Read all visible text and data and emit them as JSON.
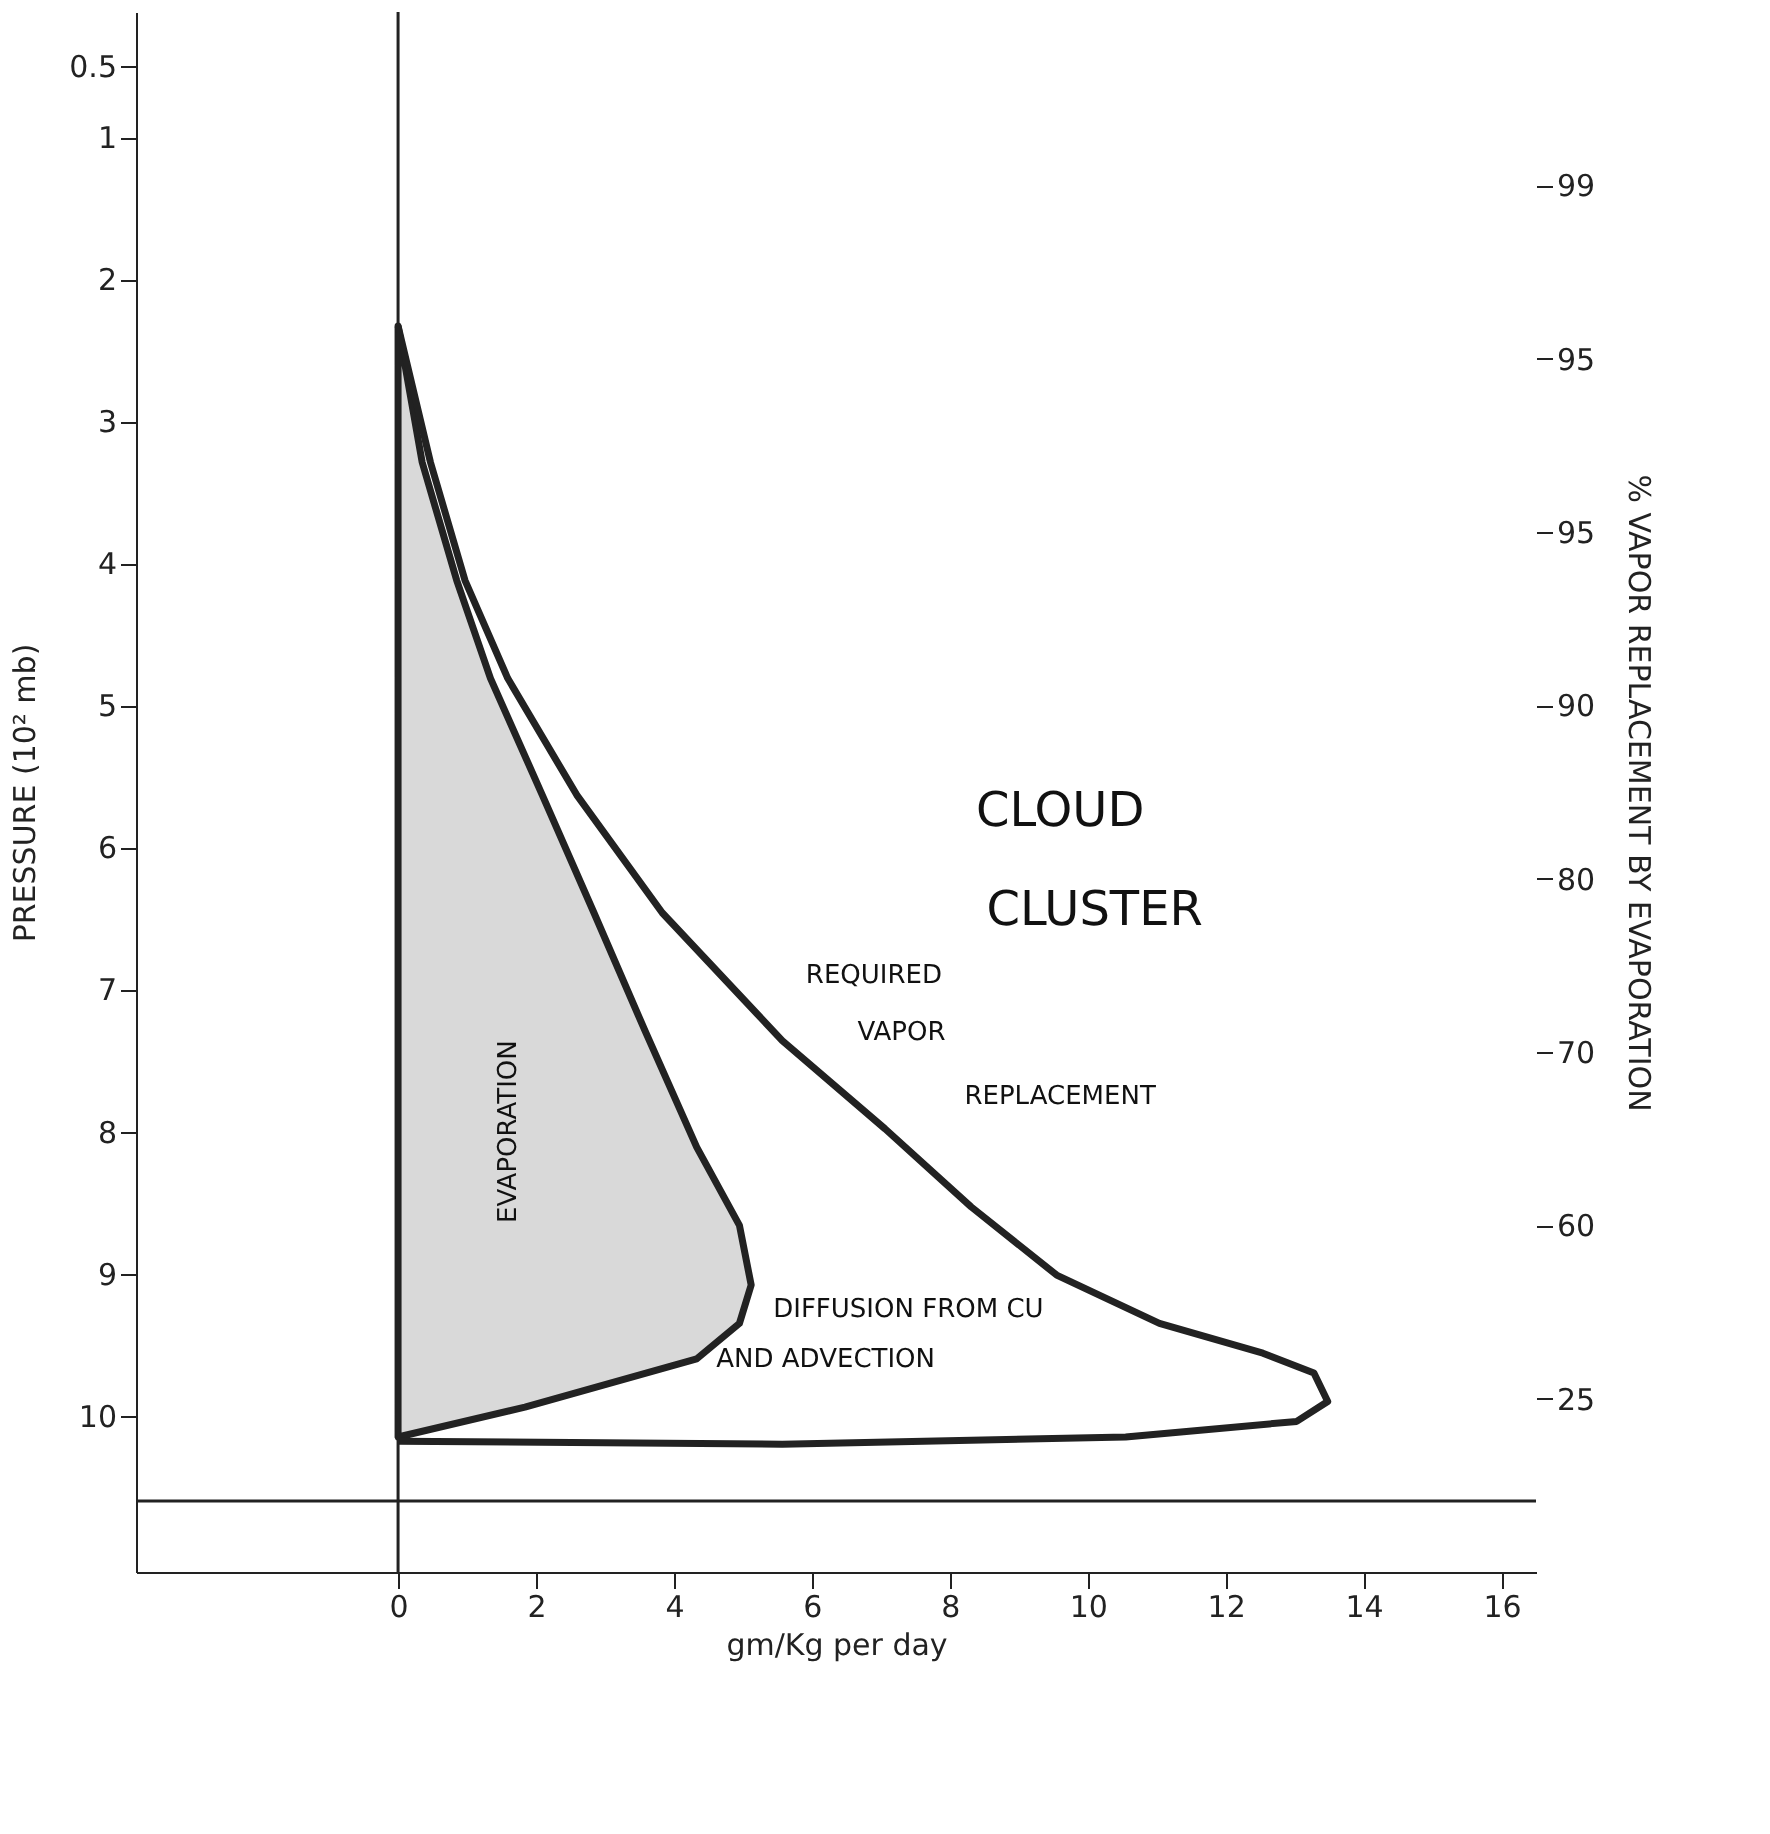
{
  "chart_data": {
    "type": "line",
    "xlabel": "gm/Kg per day",
    "ylabel": "PRESSURE (10² mb)",
    "y2label": "% VAPOR REPLACEMENT BY EVAPORATION",
    "xlim": [
      -3.8,
      16.5
    ],
    "xticks": [
      0,
      2,
      4,
      6,
      8,
      10,
      12,
      14,
      16
    ],
    "ylim": [
      11.1,
      0.12
    ],
    "yticks": [
      0.5,
      1,
      2,
      3,
      4,
      5,
      6,
      7,
      8,
      9,
      10
    ],
    "y2_categories": [
      "99",
      "95",
      "95",
      "90",
      "80",
      "70",
      "60",
      "25"
    ],
    "grid": false,
    "marker": "none",
    "line_style": "solid",
    "series": [
      {
        "type": "area",
        "color": "#d9d9d9",
        "x": [
          0,
          0.35,
          0.85,
          1.34,
          2.09,
          2.84,
          3.58,
          4.33,
          4.95,
          5.12,
          4.95,
          4.33,
          1.84,
          0
        ],
        "values": [
          2.33,
          3.29,
          4.12,
          4.81,
          5.63,
          6.46,
          7.29,
          8.11,
          8.66,
          9.08,
          9.35,
          9.6,
          9.94,
          10.15
        ]
      },
      {
        "color": "#222222",
        "x": [
          0,
          0.47,
          0.97,
          1.59,
          2.59,
          3.83,
          5.57,
          7.06,
          8.31,
          9.55,
          11.04,
          12.54,
          13.28,
          13.48,
          13.03,
          10.55,
          5.57,
          0
        ],
        "values": [
          2.33,
          3.29,
          4.12,
          4.81,
          5.63,
          6.46,
          7.36,
          7.98,
          8.53,
          9.01,
          9.35,
          9.56,
          9.7,
          9.9,
          10.04,
          10.15,
          10.2,
          10.18
        ]
      }
    ],
    "ref_lines": [
      {
        "axis": "x",
        "value": 0,
        "color": "#222222"
      },
      {
        "axis": "y",
        "value": 10.6,
        "color": "#222222"
      }
    ],
    "annotations": [
      "CLOUD",
      "CLUSTER",
      "REQUIRED",
      "VAPOR",
      "REPLACEMENT",
      "EVAPORATION",
      "DIFFUSION FROM CU",
      "AND ADVECTION"
    ]
  }
}
